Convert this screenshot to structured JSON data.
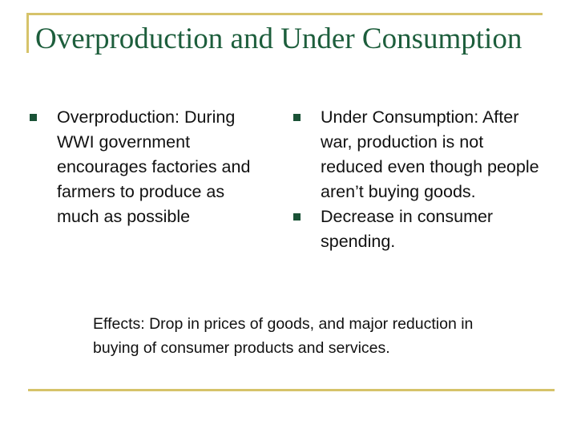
{
  "slide": {
    "title": "Overproduction and Under Consumption",
    "left_column": {
      "bullets": [
        "Overproduction: During WWI government encourages factories and farmers to produce as much as possible"
      ]
    },
    "right_column": {
      "bullets": [
        "Under Consumption: After war, production is not reduced even though people aren’t buying goods.",
        "Decrease in consumer spending."
      ]
    },
    "effects": "Effects: Drop in prices of goods, and major reduction in buying of consumer products and services."
  },
  "colors": {
    "title": "#1d5e3c",
    "rule": "#d6c36a",
    "bullet_marker": "#1a5236",
    "body_text": "#111111"
  },
  "icons": {
    "bullet_marker": "square-bullet-icon"
  }
}
